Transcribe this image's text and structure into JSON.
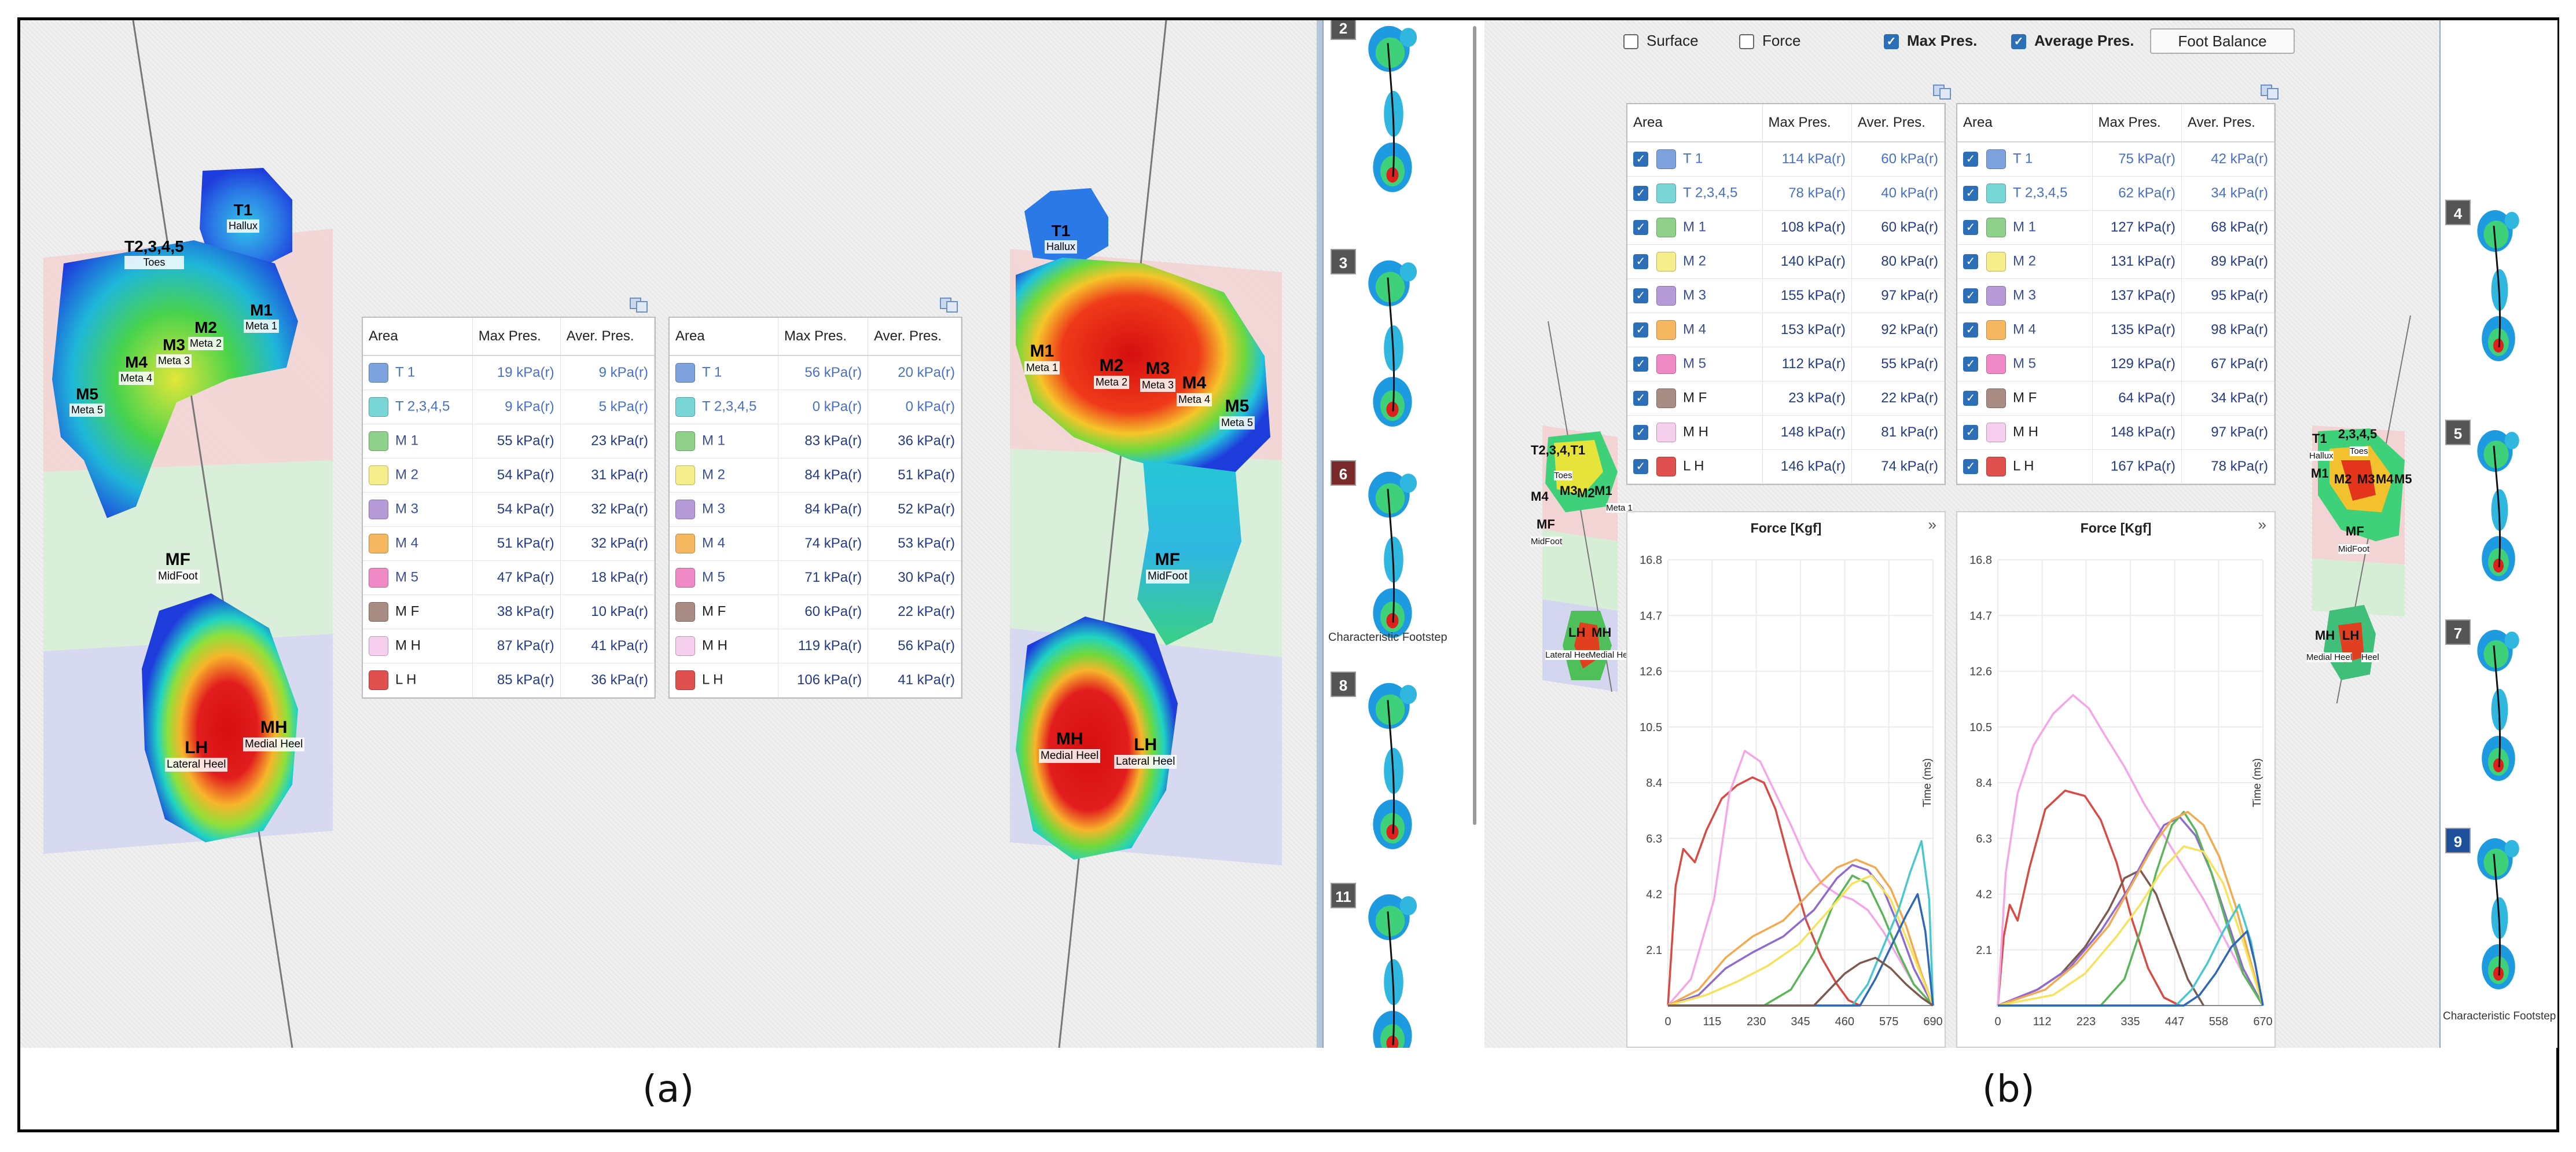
{
  "figure": {
    "caption_a": "(a)",
    "caption_b": "(b)"
  },
  "colors": {
    "pressure_low": "#1e3cdc",
    "pressure_mid": "#22c55e",
    "pressure_high": "#e11d1d",
    "value_text": "#3b5ec6",
    "check_blue": "#2c6fb7"
  },
  "table_headers": [
    "Area",
    "Max Pres.",
    "Aver. Pres."
  ],
  "area_swatches": [
    "#7da2dd",
    "#78d6d6",
    "#8fd18a",
    "#f5ee8a",
    "#b79ad8",
    "#f5b860",
    "#f08ac6",
    "#a88c84",
    "#f6cfee",
    "#e0504f"
  ],
  "table_a_left": [
    {
      "area": "T 1",
      "max": "19 kPa(r)",
      "avg": "9 kPa(r)"
    },
    {
      "area": "T 2,3,4,5",
      "max": "9 kPa(r)",
      "avg": "5 kPa(r)"
    },
    {
      "area": "M 1",
      "max": "55 kPa(r)",
      "avg": "23 kPa(r)"
    },
    {
      "area": "M 2",
      "max": "54 kPa(r)",
      "avg": "31 kPa(r)"
    },
    {
      "area": "M 3",
      "max": "54 kPa(r)",
      "avg": "32 kPa(r)"
    },
    {
      "area": "M 4",
      "max": "51 kPa(r)",
      "avg": "32 kPa(r)"
    },
    {
      "area": "M 5",
      "max": "47 kPa(r)",
      "avg": "18 kPa(r)"
    },
    {
      "area": "M F",
      "max": "38 kPa(r)",
      "avg": "10 kPa(r)"
    },
    {
      "area": "M H",
      "max": "87 kPa(r)",
      "avg": "41 kPa(r)"
    },
    {
      "area": "L H",
      "max": "85 kPa(r)",
      "avg": "36 kPa(r)"
    }
  ],
  "table_a_right": [
    {
      "area": "T 1",
      "max": "56 kPa(r)",
      "avg": "20 kPa(r)"
    },
    {
      "area": "T 2,3,4,5",
      "max": "0 kPa(r)",
      "avg": "0 kPa(r)"
    },
    {
      "area": "M 1",
      "max": "83 kPa(r)",
      "avg": "36 kPa(r)"
    },
    {
      "area": "M 2",
      "max": "84 kPa(r)",
      "avg": "51 kPa(r)"
    },
    {
      "area": "M 3",
      "max": "84 kPa(r)",
      "avg": "52 kPa(r)"
    },
    {
      "area": "M 4",
      "max": "74 kPa(r)",
      "avg": "53 kPa(r)"
    },
    {
      "area": "M 5",
      "max": "71 kPa(r)",
      "avg": "30 kPa(r)"
    },
    {
      "area": "M F",
      "max": "60 kPa(r)",
      "avg": "22 kPa(r)"
    },
    {
      "area": "M H",
      "max": "119 kPa(r)",
      "avg": "56 kPa(r)"
    },
    {
      "area": "L H",
      "max": "106 kPa(r)",
      "avg": "41 kPa(r)"
    }
  ],
  "table_b_left": [
    {
      "area": "T 1",
      "max": "114 kPa(r)",
      "avg": "60 kPa(r)"
    },
    {
      "area": "T 2,3,4,5",
      "max": "78 kPa(r)",
      "avg": "40 kPa(r)"
    },
    {
      "area": "M 1",
      "max": "108 kPa(r)",
      "avg": "60 kPa(r)"
    },
    {
      "area": "M 2",
      "max": "140 kPa(r)",
      "avg": "80 kPa(r)"
    },
    {
      "area": "M 3",
      "max": "155 kPa(r)",
      "avg": "97 kPa(r)"
    },
    {
      "area": "M 4",
      "max": "153 kPa(r)",
      "avg": "92 kPa(r)"
    },
    {
      "area": "M 5",
      "max": "112 kPa(r)",
      "avg": "55 kPa(r)"
    },
    {
      "area": "M F",
      "max": "23 kPa(r)",
      "avg": "22 kPa(r)"
    },
    {
      "area": "M H",
      "max": "148 kPa(r)",
      "avg": "81 kPa(r)"
    },
    {
      "area": "L H",
      "max": "146 kPa(r)",
      "avg": "74 kPa(r)"
    }
  ],
  "table_b_right": [
    {
      "area": "T 1",
      "max": "75 kPa(r)",
      "avg": "42 kPa(r)"
    },
    {
      "area": "T 2,3,4,5",
      "max": "62 kPa(r)",
      "avg": "34 kPa(r)"
    },
    {
      "area": "M 1",
      "max": "127 kPa(r)",
      "avg": "68 kPa(r)"
    },
    {
      "area": "M 2",
      "max": "131 kPa(r)",
      "avg": "89 kPa(r)"
    },
    {
      "area": "M 3",
      "max": "137 kPa(r)",
      "avg": "95 kPa(r)"
    },
    {
      "area": "M 4",
      "max": "135 kPa(r)",
      "avg": "98 kPa(r)"
    },
    {
      "area": "M 5",
      "max": "129 kPa(r)",
      "avg": "67 kPa(r)"
    },
    {
      "area": "M F",
      "max": "64 kPa(r)",
      "avg": "34 kPa(r)"
    },
    {
      "area": "M H",
      "max": "148 kPa(r)",
      "avg": "97 kPa(r)"
    },
    {
      "area": "L H",
      "max": "167 kPa(r)",
      "avg": "78 kPa(r)"
    }
  ],
  "foot_left_labels": [
    {
      "code": "T1",
      "name": "Hallux"
    },
    {
      "code": "T2,3,4,5",
      "name": "Toes"
    },
    {
      "code": "M1",
      "name": "Meta 1"
    },
    {
      "code": "M2",
      "name": "Meta 2"
    },
    {
      "code": "M3",
      "name": "Meta 3"
    },
    {
      "code": "M4",
      "name": "Meta 4"
    },
    {
      "code": "M5",
      "name": "Meta 5"
    },
    {
      "code": "MF",
      "name": "MidFoot"
    },
    {
      "code": "LH",
      "name": "Lateral Heel"
    },
    {
      "code": "MH",
      "name": "Medial Heel"
    }
  ],
  "foot_right_labels": [
    {
      "code": "T1",
      "name": "Hallux"
    },
    {
      "code": "M1",
      "name": "Meta 1"
    },
    {
      "code": "M2",
      "name": "Meta 2"
    },
    {
      "code": "M3",
      "name": "Meta 3"
    },
    {
      "code": "M4",
      "name": "Meta 4"
    },
    {
      "code": "M5",
      "name": "Meta 5"
    },
    {
      "code": "MF",
      "name": "MidFoot"
    },
    {
      "code": "MH",
      "name": "Medial Heel"
    },
    {
      "code": "LH",
      "name": "Lateral Heel"
    }
  ],
  "footstep_strip_a": {
    "numbers": [
      "2",
      "3",
      "6",
      "8",
      "11"
    ],
    "characteristic_label": "Characteristic Footstep"
  },
  "footstep_strip_b": {
    "numbers": [
      "4",
      "5",
      "7",
      "9"
    ],
    "characteristic_label": "Characteristic Footstep"
  },
  "toolbar_b": {
    "surface": {
      "label": "Surface",
      "checked": false
    },
    "force": {
      "label": "Force",
      "checked": false
    },
    "max_pres": {
      "label": "Max Pres.",
      "checked": true
    },
    "avg_pres": {
      "label": "Average Pres.",
      "checked": true
    },
    "foot_balance": "Foot Balance"
  },
  "small_foot_left_b": {
    "codes": [
      "T2,3,4,T1",
      "Toes",
      "M4",
      "M3",
      "M1",
      "M2",
      "MF",
      "MidFoot",
      "LH",
      "MH",
      "Lateral Heel",
      "Medial Heel",
      "Meta 1"
    ]
  },
  "small_foot_right_b": {
    "codes": [
      "T1",
      "2,3,4,5",
      "Hallux",
      "Toes",
      "M1",
      "M2",
      "M3",
      "M4",
      "M5",
      "MF",
      "MidFoot",
      "MH",
      "LH",
      "Medial Heel",
      "Heel"
    ]
  },
  "chart_data": [
    {
      "type": "line",
      "title": "Force [Kgf]",
      "ylabel": "Time (ms)",
      "xlabel": "",
      "x_ticks": [
        "0",
        "115",
        "230",
        "345",
        "460",
        "575",
        "690"
      ],
      "y_ticks": [
        "2.1",
        "4.2",
        "6.3",
        "8.4",
        "10.5",
        "12.6",
        "14.7",
        "16.8"
      ],
      "xlim": [
        0,
        690
      ],
      "ylim": [
        0,
        16.8
      ],
      "series": [
        {
          "color": "#d94a45",
          "x": [
            0,
            20,
            40,
            70,
            100,
            140,
            180,
            220,
            250,
            280,
            320,
            360,
            400,
            440,
            470,
            500
          ],
          "y": [
            0.0,
            4.5,
            5.9,
            5.4,
            6.6,
            7.8,
            8.3,
            8.6,
            8.4,
            7.4,
            5.2,
            3.2,
            1.8,
            0.8,
            0.2,
            0.0
          ]
        },
        {
          "color": "#f6a6e6",
          "x": [
            0,
            60,
            120,
            160,
            200,
            240,
            280,
            320,
            360,
            400,
            440,
            480,
            520,
            560,
            600,
            640,
            690
          ],
          "y": [
            0.0,
            1.0,
            4.0,
            8.0,
            9.6,
            9.2,
            8.0,
            6.8,
            5.5,
            4.6,
            4.2,
            4.0,
            3.6,
            2.8,
            1.8,
            0.8,
            0.0
          ]
        },
        {
          "color": "#8f6bd0",
          "x": [
            0,
            80,
            150,
            220,
            300,
            380,
            440,
            480,
            520,
            560,
            600,
            640,
            690
          ],
          "y": [
            0.0,
            0.4,
            1.4,
            2.0,
            2.6,
            3.6,
            4.8,
            5.3,
            5.1,
            4.4,
            3.0,
            1.4,
            0.0
          ]
        },
        {
          "color": "#f3a94f",
          "x": [
            0,
            80,
            150,
            220,
            300,
            380,
            440,
            490,
            540,
            580,
            620,
            660,
            690
          ],
          "y": [
            0.0,
            0.6,
            1.8,
            2.6,
            3.2,
            4.4,
            5.2,
            5.5,
            5.2,
            4.4,
            3.0,
            1.2,
            0.0
          ]
        },
        {
          "color": "#58b558",
          "x": [
            0,
            250,
            320,
            380,
            430,
            480,
            520,
            560,
            600,
            640,
            690
          ],
          "y": [
            0.0,
            0.0,
            0.6,
            2.0,
            3.8,
            4.9,
            4.6,
            3.4,
            2.0,
            0.8,
            0.0
          ]
        },
        {
          "color": "#f5e35c",
          "x": [
            0,
            100,
            180,
            260,
            340,
            420,
            480,
            530,
            580,
            630,
            690
          ],
          "y": [
            0.0,
            0.4,
            0.9,
            1.5,
            2.3,
            3.6,
            4.6,
            4.9,
            4.0,
            2.2,
            0.0
          ]
        },
        {
          "color": "#49c7cf",
          "x": [
            0,
            480,
            520,
            560,
            600,
            630,
            660,
            680,
            690
          ],
          "y": [
            0.0,
            0.0,
            0.8,
            2.2,
            3.6,
            5.0,
            6.2,
            4.0,
            0.0
          ]
        },
        {
          "color": "#2f67b8",
          "x": [
            0,
            500,
            540,
            580,
            620,
            650,
            670,
            690
          ],
          "y": [
            0.0,
            0.0,
            1.0,
            2.2,
            3.4,
            4.2,
            2.8,
            0.0
          ]
        },
        {
          "color": "#7c5a4f",
          "x": [
            0,
            380,
            420,
            460,
            500,
            540,
            580,
            620,
            660,
            690
          ],
          "y": [
            0.0,
            0.0,
            0.6,
            1.2,
            1.6,
            1.8,
            1.4,
            0.8,
            0.3,
            0.0
          ]
        }
      ]
    },
    {
      "type": "line",
      "title": "Force [Kgf]",
      "ylabel": "Time (ms)",
      "xlabel": "",
      "x_ticks": [
        "0",
        "112",
        "223",
        "335",
        "447",
        "558",
        "670"
      ],
      "y_ticks": [
        "2.1",
        "4.2",
        "6.3",
        "8.4",
        "10.5",
        "12.6",
        "14.7",
        "16.8"
      ],
      "xlim": [
        0,
        670
      ],
      "ylim": [
        0,
        16.8
      ],
      "series": [
        {
          "color": "#d94a45",
          "x": [
            0,
            15,
            30,
            50,
            80,
            120,
            170,
            220,
            260,
            300,
            340,
            380,
            420,
            460
          ],
          "y": [
            0.0,
            2.6,
            3.8,
            3.2,
            5.2,
            7.4,
            8.1,
            7.9,
            7.0,
            5.4,
            3.2,
            1.4,
            0.3,
            0.0
          ]
        },
        {
          "color": "#f6a6e6",
          "x": [
            0,
            20,
            50,
            90,
            140,
            190,
            230,
            270,
            320,
            370,
            420,
            470,
            520,
            570,
            620,
            670
          ],
          "y": [
            0.0,
            5.0,
            8.0,
            9.8,
            11.0,
            11.7,
            11.2,
            10.2,
            9.0,
            7.6,
            6.4,
            5.2,
            4.0,
            2.6,
            1.2,
            0.0
          ]
        },
        {
          "color": "#7c5a4f",
          "x": [
            0,
            100,
            160,
            220,
            280,
            320,
            360,
            400,
            440,
            480,
            520
          ],
          "y": [
            0.0,
            0.6,
            1.2,
            2.2,
            3.6,
            4.8,
            5.1,
            4.2,
            2.6,
            1.0,
            0.0
          ]
        },
        {
          "color": "#8f6bd0",
          "x": [
            0,
            100,
            180,
            260,
            330,
            380,
            420,
            460,
            500,
            540,
            580,
            620,
            670
          ],
          "y": [
            0.0,
            0.6,
            1.4,
            2.8,
            4.4,
            5.8,
            6.8,
            7.1,
            6.4,
            5.0,
            3.2,
            1.4,
            0.0
          ]
        },
        {
          "color": "#58b558",
          "x": [
            0,
            260,
            320,
            360,
            400,
            440,
            470,
            500,
            540,
            580,
            620,
            670
          ],
          "y": [
            0.0,
            0.0,
            1.0,
            2.8,
            5.0,
            6.8,
            7.3,
            6.6,
            5.0,
            3.0,
            1.2,
            0.0
          ]
        },
        {
          "color": "#f3a94f",
          "x": [
            0,
            120,
            200,
            280,
            340,
            400,
            440,
            480,
            520,
            560,
            600,
            640,
            670
          ],
          "y": [
            0.0,
            0.6,
            1.6,
            3.0,
            4.6,
            6.2,
            7.0,
            7.3,
            6.8,
            5.6,
            3.8,
            1.6,
            0.0
          ]
        },
        {
          "color": "#f5e35c",
          "x": [
            0,
            140,
            220,
            300,
            360,
            420,
            470,
            520,
            570,
            620,
            670
          ],
          "y": [
            0.0,
            0.4,
            1.2,
            2.6,
            3.8,
            5.2,
            6.0,
            5.8,
            4.6,
            2.4,
            0.0
          ]
        },
        {
          "color": "#49c7cf",
          "x": [
            0,
            450,
            490,
            530,
            570,
            610,
            640,
            670
          ],
          "y": [
            0.0,
            0.0,
            0.6,
            1.6,
            2.8,
            3.8,
            2.4,
            0.0
          ]
        },
        {
          "color": "#2f67b8",
          "x": [
            0,
            470,
            510,
            550,
            590,
            630,
            650,
            670
          ],
          "y": [
            0.0,
            0.0,
            0.4,
            1.2,
            2.2,
            2.8,
            1.6,
            0.0
          ]
        }
      ]
    }
  ]
}
